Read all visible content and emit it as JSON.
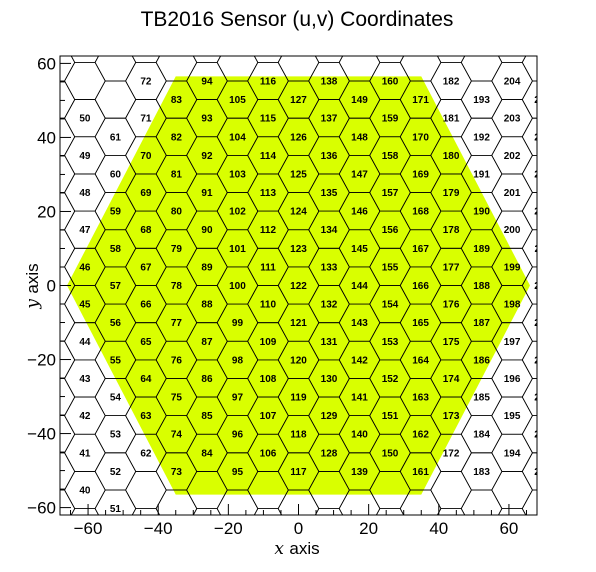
{
  "chart_data": {
    "type": "scatter",
    "title": "TB2016 Sensor (u,v) Coordinates",
    "xlabel_symbol": "x",
    "xlabel_word": "axis",
    "ylabel_symbol": "y",
    "ylabel_word": "axis",
    "xlim": [
      -68,
      68
    ],
    "ylim": [
      -62,
      62
    ],
    "x_ticks": [
      -60,
      -40,
      -20,
      0,
      20,
      40,
      60
    ],
    "y_ticks": [
      -60,
      -40,
      -20,
      0,
      20,
      40,
      60
    ],
    "x_tick_labels": [
      "−60",
      "−40",
      "−20",
      "0",
      "20",
      "40",
      "60"
    ],
    "y_tick_labels": [
      "−60",
      "−40",
      "−20",
      "0",
      "20",
      "40",
      "60"
    ],
    "hex_side": 5.8,
    "sensor_color": "#d9ff00",
    "grid_color": "#000000",
    "sensor_hexagon": [
      [
        -35,
        56.5
      ],
      [
        35,
        56.5
      ],
      [
        66,
        0
      ],
      [
        35,
        -56.5
      ],
      [
        -35,
        -56.5
      ],
      [
        -66,
        0
      ]
    ],
    "cell_ids": {
      "first_id": 6,
      "first_column": -11,
      "column_start_v": [
        -1,
        -6,
        -6,
        -6,
        -6,
        -6,
        -5,
        -5,
        -5,
        -5,
        -5,
        -5,
        -5,
        -5,
        -5,
        -5,
        -5,
        -5,
        -5,
        -5,
        -5,
        -5,
        -6,
        -7
      ],
      "column_count": [
        2,
        10,
        11,
        11,
        11,
        11,
        11,
        11,
        11,
        11,
        11,
        11,
        11,
        11,
        11,
        11,
        11,
        11,
        11,
        11,
        11,
        11,
        11,
        2
      ]
    }
  }
}
